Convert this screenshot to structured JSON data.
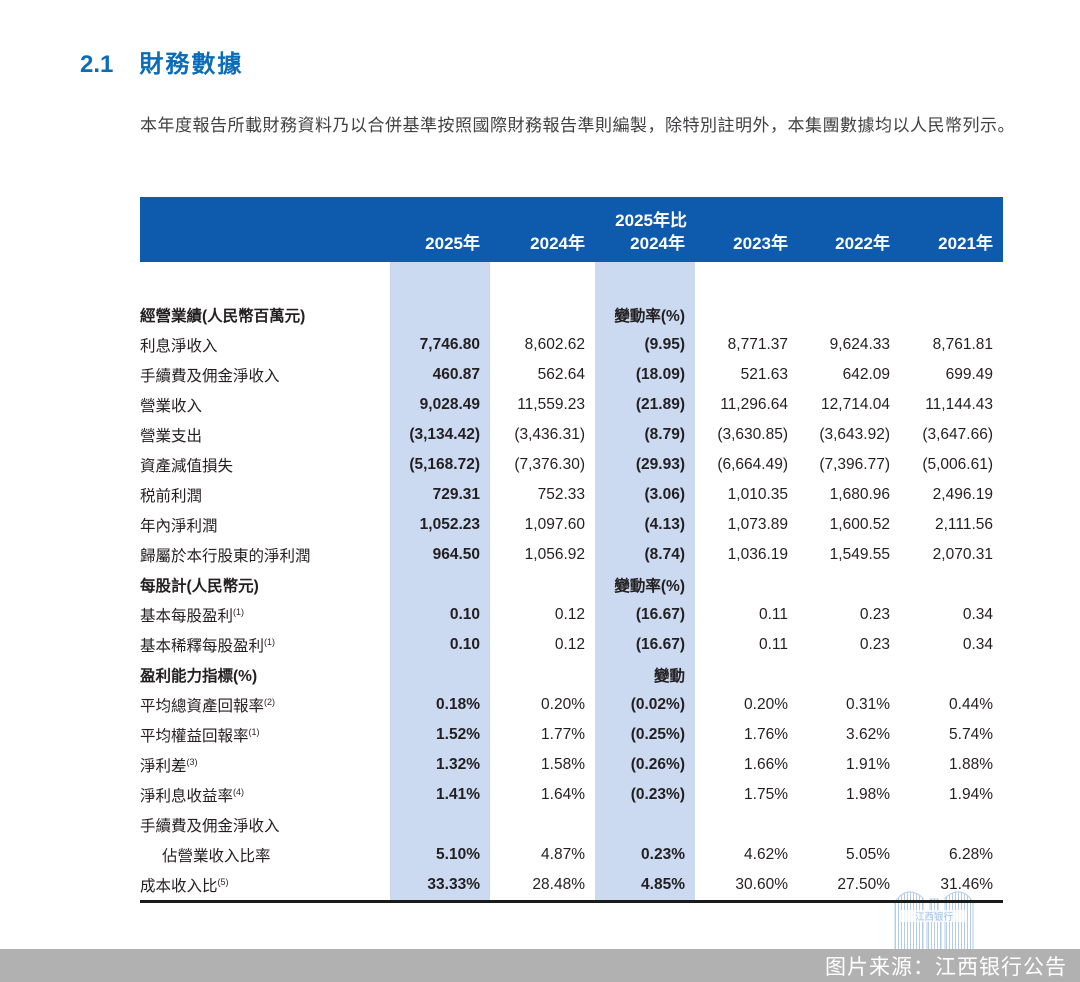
{
  "page": {
    "section_number": "2.1",
    "section_title": "財務數據",
    "intro": "本年度報告所載財務資料乃以合併基準按照國際財務報告準則編製，除特別註明外，本集團數據均以人民幣列示。"
  },
  "colors": {
    "header_bg": "#0e5bad",
    "highlight_band": "#cbdaf1",
    "title_blue": "#0c6cb6",
    "footer_bg": "#b1b1b1",
    "watermark_blue": "#b3cde9"
  },
  "table": {
    "header": {
      "compare_line1": "2025年比",
      "columns": [
        "2025年",
        "2024年",
        "2024年",
        "2023年",
        "2022年",
        "2021年"
      ]
    },
    "rows": [
      {
        "label": "經營業績(人民幣百萬元)",
        "section": true,
        "cells": [
          "",
          "",
          "變動率(%)",
          "",
          "",
          ""
        ]
      },
      {
        "label": "利息淨收入",
        "cells": [
          "7,746.80",
          "8,602.62",
          "(9.95)",
          "8,771.37",
          "9,624.33",
          "8,761.81"
        ]
      },
      {
        "label": "手續費及佣金淨收入",
        "cells": [
          "460.87",
          "562.64",
          "(18.09)",
          "521.63",
          "642.09",
          "699.49"
        ]
      },
      {
        "label": "營業收入",
        "cells": [
          "9,028.49",
          "11,559.23",
          "(21.89)",
          "11,296.64",
          "12,714.04",
          "11,144.43"
        ]
      },
      {
        "label": "營業支出",
        "cells": [
          "(3,134.42)",
          "(3,436.31)",
          "(8.79)",
          "(3,630.85)",
          "(3,643.92)",
          "(3,647.66)"
        ]
      },
      {
        "label": "資產減值損失",
        "cells": [
          "(5,168.72)",
          "(7,376.30)",
          "(29.93)",
          "(6,664.49)",
          "(7,396.77)",
          "(5,006.61)"
        ]
      },
      {
        "label": "税前利潤",
        "cells": [
          "729.31",
          "752.33",
          "(3.06)",
          "1,010.35",
          "1,680.96",
          "2,496.19"
        ]
      },
      {
        "label": "年內淨利潤",
        "cells": [
          "1,052.23",
          "1,097.60",
          "(4.13)",
          "1,073.89",
          "1,600.52",
          "2,111.56"
        ]
      },
      {
        "label": "歸屬於本行股東的淨利潤",
        "cells": [
          "964.50",
          "1,056.92",
          "(8.74)",
          "1,036.19",
          "1,549.55",
          "2,070.31"
        ]
      },
      {
        "label": "每股計(人民幣元)",
        "section": true,
        "cells": [
          "",
          "",
          "變動率(%)",
          "",
          "",
          ""
        ]
      },
      {
        "label": "基本每股盈利",
        "sup": "(1)",
        "cells": [
          "0.10",
          "0.12",
          "(16.67)",
          "0.11",
          "0.23",
          "0.34"
        ]
      },
      {
        "label": "基本稀釋每股盈利",
        "sup": "(1)",
        "cells": [
          "0.10",
          "0.12",
          "(16.67)",
          "0.11",
          "0.23",
          "0.34"
        ]
      },
      {
        "label": "盈利能力指標(%)",
        "section": true,
        "cells": [
          "",
          "",
          "變動",
          "",
          "",
          ""
        ]
      },
      {
        "label": "平均總資產回報率",
        "sup": "(2)",
        "cells": [
          "0.18%",
          "0.20%",
          "(0.02%)",
          "0.20%",
          "0.31%",
          "0.44%"
        ]
      },
      {
        "label": "平均權益回報率",
        "sup": "(1)",
        "cells": [
          "1.52%",
          "1.77%",
          "(0.25%)",
          "1.76%",
          "3.62%",
          "5.74%"
        ]
      },
      {
        "label": "淨利差",
        "sup": "(3)",
        "cells": [
          "1.32%",
          "1.58%",
          "(0.26%)",
          "1.66%",
          "1.91%",
          "1.88%"
        ]
      },
      {
        "label": "淨利息收益率",
        "sup": "(4)",
        "cells": [
          "1.41%",
          "1.64%",
          "(0.23%)",
          "1.75%",
          "1.98%",
          "1.94%"
        ]
      },
      {
        "label": "手續費及佣金淨收入",
        "cells": [
          "",
          "",
          "",
          "",
          "",
          ""
        ]
      },
      {
        "label": "佔營業收入比率",
        "indent": true,
        "cells": [
          "5.10%",
          "4.87%",
          "0.23%",
          "4.62%",
          "5.05%",
          "6.28%"
        ]
      },
      {
        "label": "成本收入比",
        "sup": "(5)",
        "cells": [
          "33.33%",
          "28.48%",
          "4.85%",
          "30.60%",
          "27.50%",
          "31.46%"
        ]
      }
    ]
  },
  "footer": {
    "source_text": "图片来源：江西银行公告"
  },
  "watermark": {
    "text": "江西银行"
  }
}
